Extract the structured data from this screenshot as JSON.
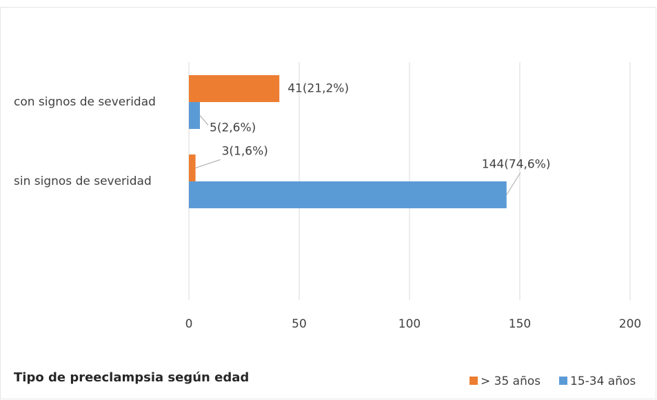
{
  "chart_data": {
    "type": "bar",
    "orientation": "horizontal",
    "title": "Tipo de preeclampsia según edad",
    "categories": [
      "con signos de severidad",
      "sin signos de severidad"
    ],
    "series": [
      {
        "name": "> 35 años",
        "color": "#ed7d31",
        "values": [
          41,
          3
        ],
        "value_labels": [
          "41(21,2%)",
          "3(1,6%)"
        ]
      },
      {
        "name": "15-34 años",
        "color": "#5b9bd5",
        "values": [
          5,
          144
        ],
        "value_labels": [
          "5(2,6%)",
          "144(74,6%)"
        ]
      }
    ],
    "xlim": [
      0,
      200
    ],
    "xticks": [
      0,
      50,
      100,
      150,
      200
    ],
    "grid": true,
    "legend": "bottom-right"
  }
}
